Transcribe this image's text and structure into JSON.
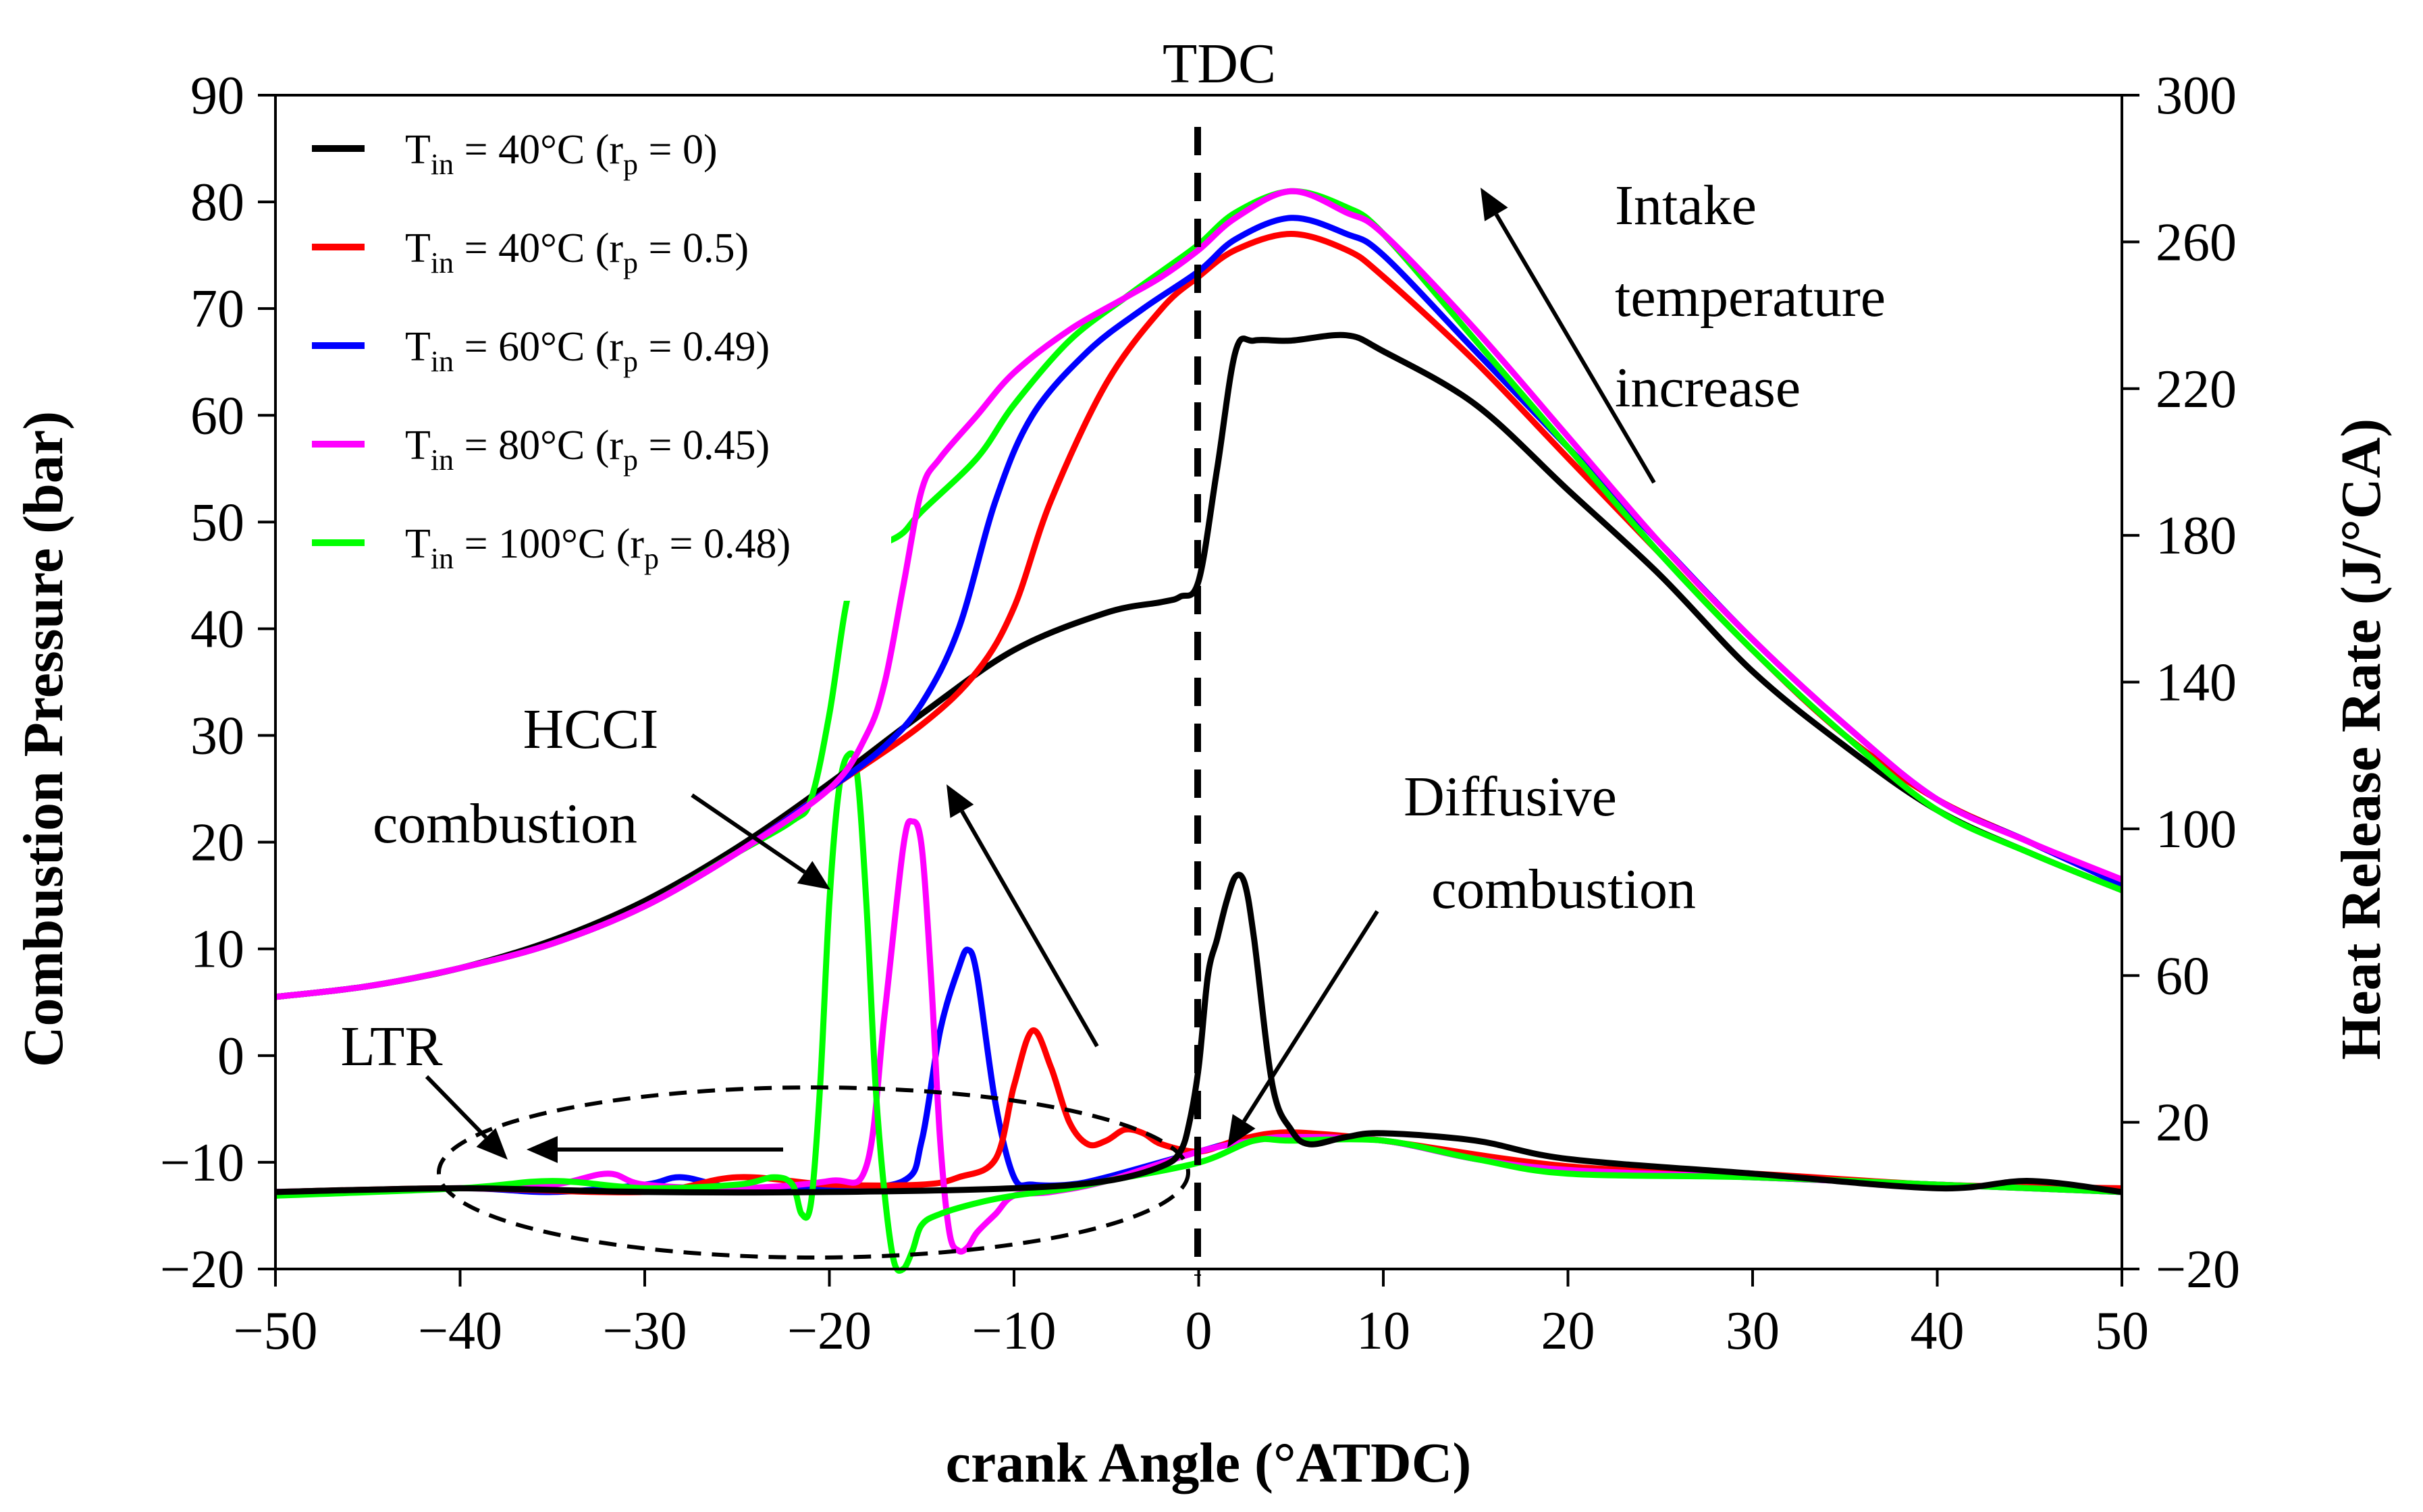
{
  "chart_data": {
    "type": "line",
    "xlabel": "crank Angle (°ATDC)",
    "ylabel_left": "Combustion Pressure (bar)",
    "ylabel_right": "Heat Release Rate (J/°CA)",
    "xlim": [
      -50,
      50
    ],
    "ylim_left": [
      -20,
      90
    ],
    "ylim_right": [
      -20,
      300
    ],
    "x_ticks": [
      -50,
      -40,
      -30,
      -20,
      -10,
      0,
      10,
      20,
      30,
      40,
      50
    ],
    "x_tick_labels": [
      "−50",
      "−40",
      "−30",
      "−20",
      "−10",
      "0",
      "10",
      "20",
      "30",
      "40",
      "50"
    ],
    "y_left_ticks": [
      -20,
      -10,
      0,
      10,
      20,
      30,
      40,
      50,
      60,
      70,
      80,
      90
    ],
    "y_left_tick_labels": [
      "−20",
      "−10",
      "0",
      "10",
      "20",
      "30",
      "40",
      "50",
      "60",
      "70",
      "80",
      "90"
    ],
    "y_right_ticks": [
      -20,
      20,
      60,
      100,
      140,
      180,
      220,
      260,
      300
    ],
    "y_right_tick_labels": [
      "−20",
      "20",
      "60",
      "100",
      "140",
      "180",
      "220",
      "260",
      "300"
    ],
    "grid": false,
    "legend_position": "top-left",
    "annotations": {
      "tdc": "TDC",
      "hcci_line1": "HCCI",
      "hcci_line2": "combustion",
      "diffusive_line1": "Diffusive",
      "diffusive_line2": "combustion",
      "ltr": "LTR",
      "intake_line1": "Intake",
      "intake_line2": "temperature",
      "intake_line3": "increase"
    },
    "series": [
      {
        "legend_main": "T",
        "legend_sub": "in",
        "legend_mid": " = 40°C (r",
        "legend_sub2": "p",
        "legend_end": " = 0)",
        "color": "#000000",
        "pressure": {
          "x": [
            -50,
            -45,
            -40,
            -35,
            -30,
            -25,
            -20,
            -15,
            -10,
            -5,
            -2,
            -1,
            0,
            1,
            2,
            3,
            5,
            8,
            10,
            15,
            20,
            25,
            30,
            35,
            40,
            45,
            50
          ],
          "y": [
            5.5,
            6.5,
            8.2,
            10.8,
            14.5,
            19.5,
            25.5,
            32,
            38,
            41.5,
            42.5,
            43,
            44.5,
            55,
            66,
            67,
            67,
            67.5,
            66,
            61,
            53,
            45,
            36,
            29,
            23,
            19,
            15.5
          ]
        },
        "hrr": {
          "x": [
            -50,
            -40,
            -30,
            -20,
            -10,
            -5,
            -2,
            -1,
            -0.5,
            0,
            0.5,
            1,
            1.5,
            2,
            2.5,
            3,
            4,
            5,
            6,
            8,
            10,
            15,
            20,
            30,
            40,
            45,
            50
          ],
          "y": [
            1,
            2,
            1,
            1,
            2,
            4,
            8,
            12,
            20,
            35,
            60,
            70,
            80,
            87,
            85,
            70,
            30,
            18,
            14,
            16,
            17,
            15,
            10,
            6,
            2,
            4,
            1
          ]
        }
      },
      {
        "legend_main": "T",
        "legend_sub": "in",
        "legend_mid": " = 40°C (r",
        "legend_sub2": "p",
        "legend_end": " = 0.5)",
        "color": "#ff0000",
        "pressure": {
          "x": [
            -50,
            -45,
            -40,
            -35,
            -30,
            -25,
            -20,
            -15,
            -12,
            -10,
            -8,
            -5,
            -2,
            0,
            2,
            5,
            8,
            10,
            15,
            20,
            25,
            30,
            35,
            40,
            45,
            50
          ],
          "y": [
            5.5,
            6.5,
            8.2,
            10.5,
            14,
            19,
            25,
            31,
            36,
            42,
            52,
            63,
            70,
            73,
            75.5,
            77,
            75.5,
            73,
            65,
            56,
            47,
            38,
            30,
            24,
            20,
            16
          ]
        },
        "hrr": {
          "x": [
            -50,
            -40,
            -30,
            -25,
            -20,
            -15,
            -13,
            -11,
            -10,
            -9,
            -8,
            -7,
            -6,
            -5,
            -4,
            -3,
            -2,
            0,
            2,
            4,
            6,
            10,
            20,
            30,
            40,
            50
          ],
          "y": [
            1,
            2,
            1,
            5,
            3,
            3,
            5,
            10,
            30,
            45,
            35,
            20,
            14,
            15,
            18,
            17,
            14,
            12,
            15,
            17,
            17,
            15,
            8,
            6,
            3,
            2
          ]
        }
      },
      {
        "legend_main": "T",
        "legend_sub": "in",
        "legend_mid": " = 60°C (r",
        "legend_sub2": "p",
        "legend_end": " = 0.49)",
        "color": "#0000ff",
        "pressure": {
          "x": [
            -50,
            -45,
            -40,
            -35,
            -30,
            -25,
            -20,
            -17,
            -15,
            -13,
            -11,
            -9,
            -6,
            -3,
            0,
            2,
            5,
            8,
            10,
            15,
            20,
            25,
            30,
            35,
            40,
            45,
            50
          ],
          "y": [
            5.5,
            6.5,
            8.2,
            10.5,
            14,
            19,
            25,
            29,
            33,
            40,
            52,
            60,
            66,
            70,
            73.5,
            76.5,
            78.5,
            77,
            75,
            66,
            57,
            48,
            39,
            31,
            24,
            20,
            16
          ]
        },
        "hrr": {
          "x": [
            -50,
            -40,
            -35,
            -30,
            -28,
            -25,
            -20,
            -16,
            -15,
            -14,
            -13,
            -12.5,
            -12,
            -11,
            -10,
            -9,
            -7,
            -5,
            0,
            3,
            5,
            10,
            15,
            20,
            30,
            40,
            50
          ],
          "y": [
            1,
            2,
            1,
            3,
            5,
            2,
            2,
            4,
            15,
            45,
            62,
            67,
            60,
            25,
            5,
            3,
            3,
            5,
            12,
            16,
            16,
            15,
            10,
            7,
            5,
            3,
            1
          ]
        }
      },
      {
        "legend_main": "T",
        "legend_sub": "in",
        "legend_mid": " = 80°C (r",
        "legend_sub2": "p",
        "legend_end": " = 0.45)",
        "color": "#ff00ff",
        "pressure": {
          "x": [
            -50,
            -45,
            -40,
            -35,
            -30,
            -25,
            -20,
            -18,
            -17,
            -16,
            -15,
            -14,
            -12,
            -10,
            -7,
            -4,
            -2,
            0,
            2,
            5,
            8,
            10,
            15,
            20,
            25,
            30,
            35,
            40,
            45,
            50
          ],
          "y": [
            5.5,
            6.5,
            8.2,
            10.5,
            14,
            19,
            25,
            30,
            35,
            44,
            53,
            56,
            60,
            64,
            68,
            71,
            73,
            75.5,
            78.5,
            81,
            79,
            77,
            68,
            58,
            48,
            39,
            31,
            24,
            20,
            16.5
          ]
        },
        "hrr": {
          "x": [
            -50,
            -40,
            -35,
            -32,
            -30,
            -25,
            -20,
            -18,
            -17,
            -16,
            -15.5,
            -15,
            -14.5,
            -14,
            -13.5,
            -13,
            -12.5,
            -12,
            -11,
            -10,
            -8,
            -5,
            0,
            3,
            5,
            10,
            15,
            20,
            30,
            40,
            50
          ],
          "y": [
            1,
            2,
            3,
            6,
            3,
            2,
            4,
            8,
            50,
            95,
            102,
            95,
            60,
            15,
            -10,
            -15,
            -14,
            -10,
            -5,
            0,
            1,
            4,
            12,
            15,
            16,
            15,
            10,
            7,
            5,
            3,
            1
          ]
        }
      },
      {
        "legend_main": "T",
        "legend_sub": "in",
        "legend_mid": " = 100°C (r",
        "legend_sub2": "p",
        "legend_end": " = 0.48)",
        "color": "#00ff00",
        "pressure": {
          "x": [
            -50,
            -45,
            -40,
            -35,
            -30,
            -25,
            -22,
            -21,
            -20,
            -19,
            -18,
            -17,
            -16,
            -15,
            -12,
            -10,
            -7,
            -4,
            -2,
            0,
            2,
            5,
            8,
            10,
            15,
            20,
            25,
            30,
            35,
            40,
            45,
            50
          ],
          "y": [
            5.5,
            6.5,
            8.2,
            10.5,
            14,
            19,
            22,
            24,
            32,
            43,
            47,
            48,
            49,
            51,
            56,
            61,
            67,
            71,
            73.5,
            76,
            79,
            81,
            79.5,
            77,
            67,
            57,
            47,
            38,
            30,
            23,
            19,
            15.5
          ]
        },
        "hrr": {
          "x": [
            -50,
            -40,
            -35,
            -30,
            -25,
            -23,
            -22,
            -21.5,
            -21,
            -20.5,
            -20,
            -19.5,
            -19,
            -18.5,
            -18,
            -17.5,
            -17,
            -16.5,
            -16,
            -15.5,
            -15,
            -14,
            -12,
            -10,
            -7,
            -5,
            0,
            3,
            5,
            10,
            15,
            20,
            30,
            40,
            50
          ],
          "y": [
            0,
            2,
            4,
            2,
            3,
            5,
            3,
            -5,
            -2,
            30,
            80,
            110,
            120,
            115,
            80,
            30,
            0,
            -18,
            -20,
            -15,
            -8,
            -5,
            -2,
            0,
            2,
            4,
            9,
            15,
            15,
            15,
            10,
            6,
            5,
            3,
            1
          ]
        }
      }
    ]
  }
}
